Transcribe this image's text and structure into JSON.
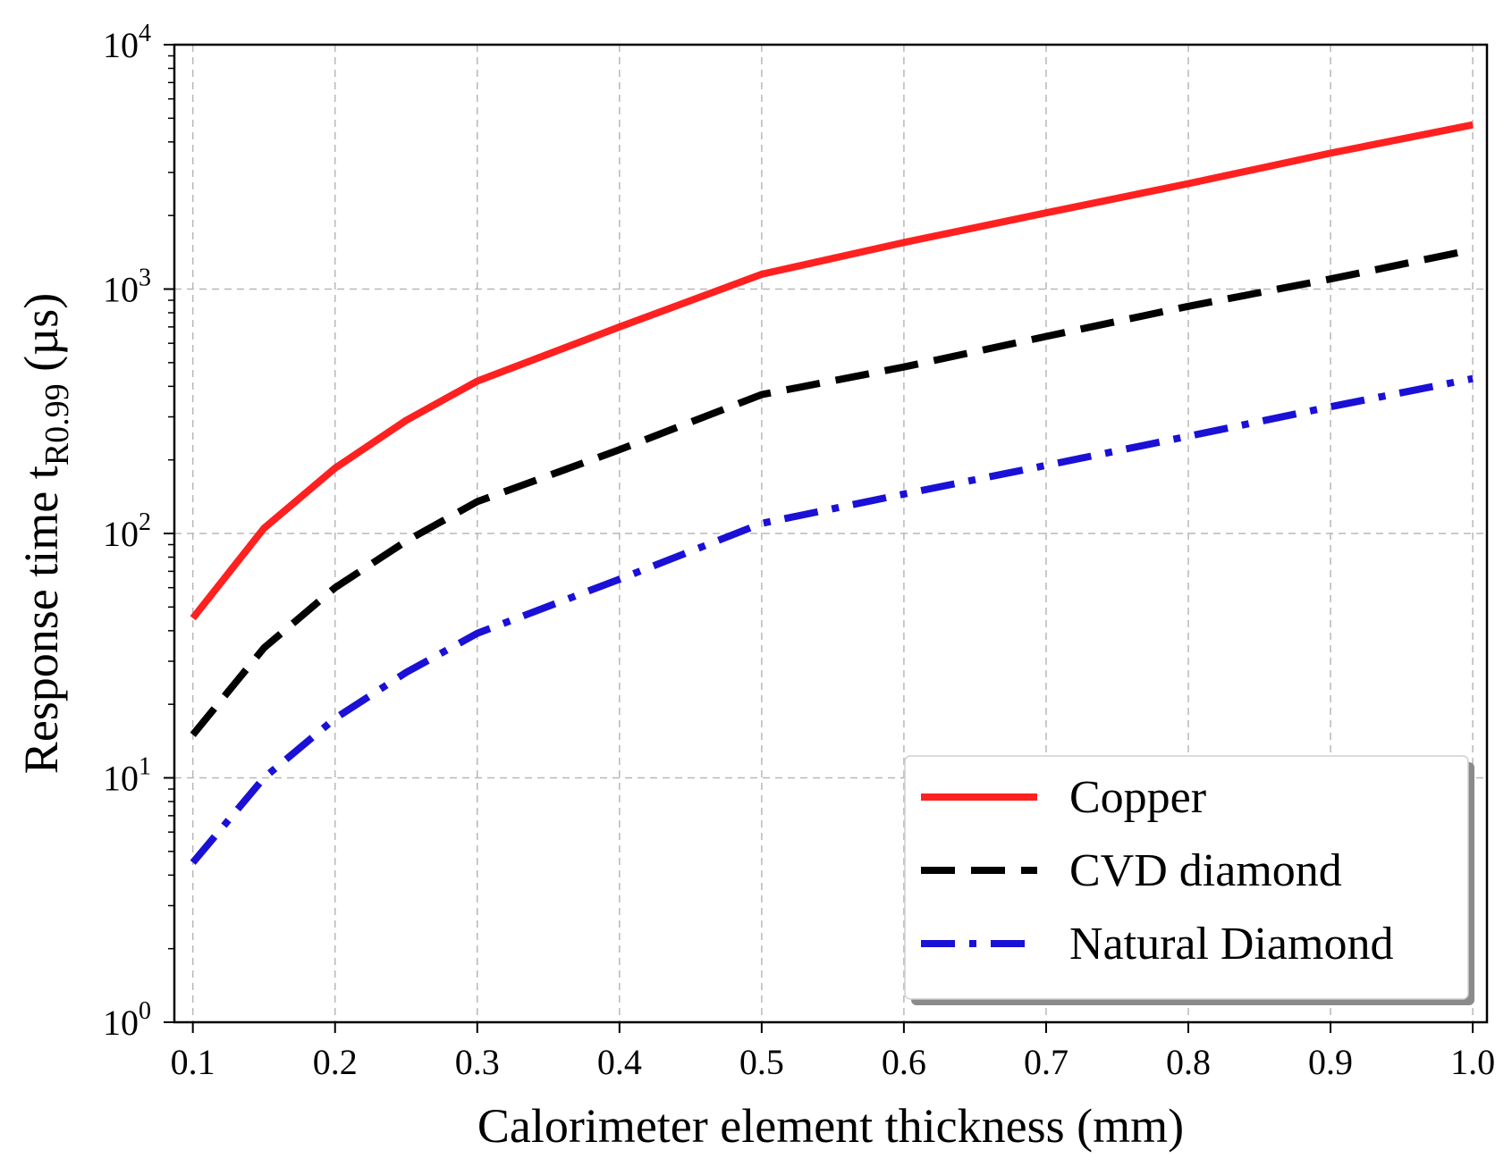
{
  "chart_data": {
    "type": "line",
    "title": "",
    "xlabel": "Calorimeter element thickness (mm)",
    "ylabel_main": "Response time t",
    "ylabel_sub": "R0.99",
    "ylabel_units": " (µs)",
    "yscale": "log",
    "xlim": [
      0.087,
      1.01
    ],
    "ylim": [
      1,
      10000
    ],
    "grid": true,
    "legend_position": "lower-right",
    "x_ticks": [
      0.1,
      0.2,
      0.3,
      0.4,
      0.5,
      0.6,
      0.7,
      0.8,
      0.9,
      1.0
    ],
    "x_tick_labels": [
      "0.1",
      "0.2",
      "0.3",
      "0.4",
      "0.5",
      "0.6",
      "0.7",
      "0.8",
      "0.9",
      "1.0"
    ],
    "y_ticks": [
      {
        "value": 1,
        "base": "10",
        "exp": "0"
      },
      {
        "value": 10,
        "base": "10",
        "exp": "1"
      },
      {
        "value": 100,
        "base": "10",
        "exp": "2"
      },
      {
        "value": 1000,
        "base": "10",
        "exp": "3"
      },
      {
        "value": 10000,
        "base": "10",
        "exp": "4"
      }
    ],
    "x": [
      0.1,
      0.15,
      0.2,
      0.25,
      0.3,
      0.4,
      0.5,
      0.6,
      0.7,
      0.8,
      0.9,
      1.0
    ],
    "series": [
      {
        "name": "Copper",
        "color": "#ff2020",
        "style": "solid",
        "values": [
          45,
          105,
          185,
          290,
          420,
          700,
          1150,
          1550,
          2050,
          2700,
          3600,
          4700
        ]
      },
      {
        "name": "CVD diamond",
        "color": "#000000",
        "style": "dashed",
        "values": [
          15,
          34,
          60,
          93,
          135,
          220,
          370,
          480,
          640,
          850,
          1100,
          1450
        ]
      },
      {
        "name": "Natural Diamond",
        "color": "#1a10d6",
        "style": "dashdot",
        "values": [
          4.5,
          10,
          17.5,
          27,
          39,
          65,
          110,
          145,
          190,
          250,
          330,
          430
        ]
      }
    ]
  }
}
